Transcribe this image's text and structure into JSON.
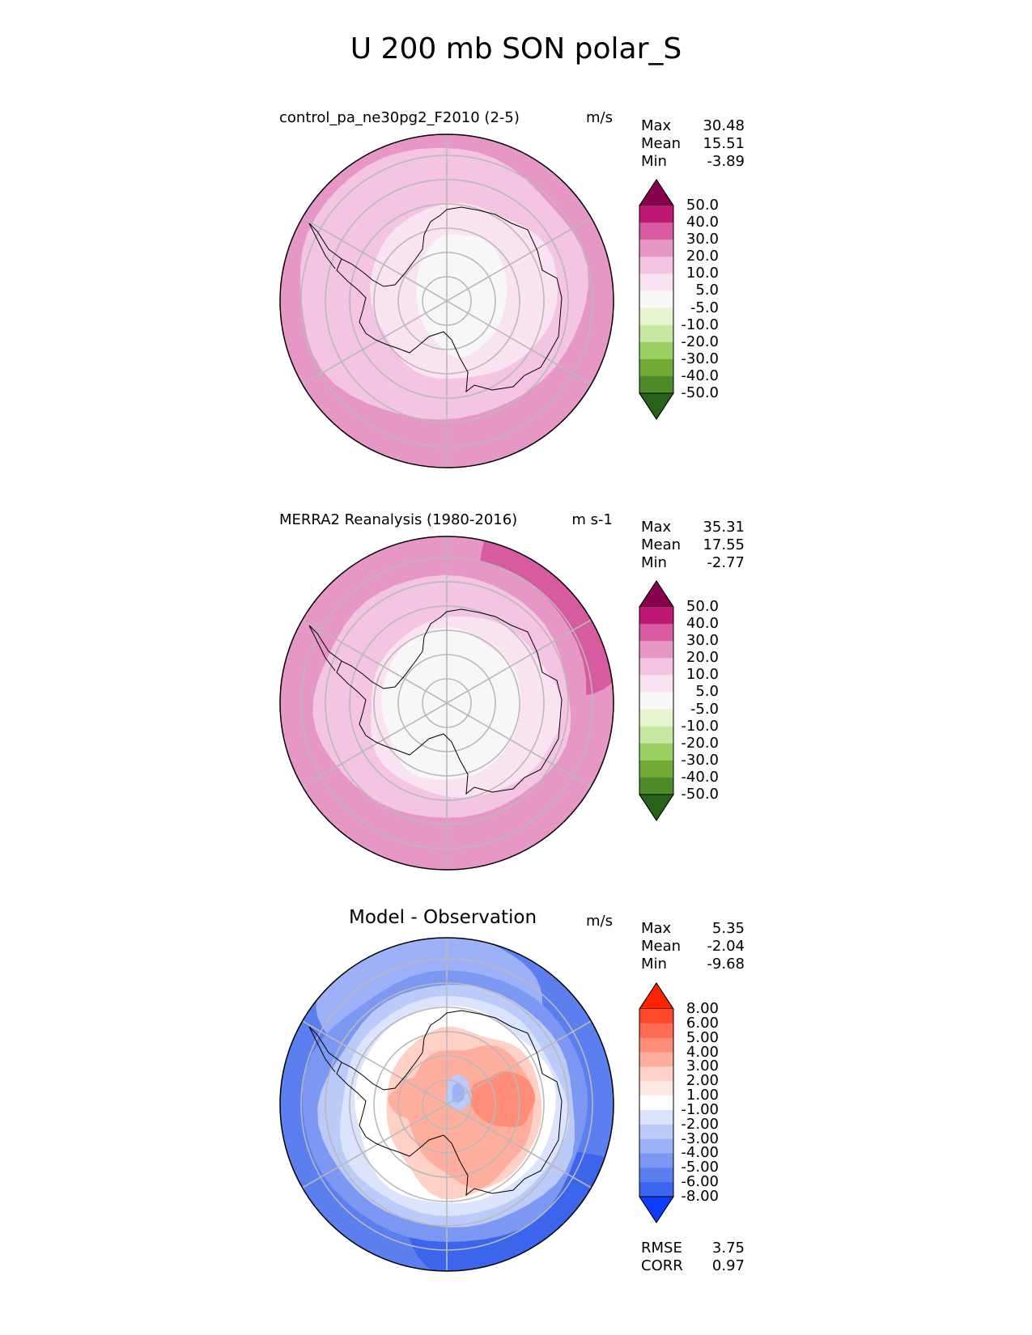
{
  "page_title": "U 200 mb SON polar_S",
  "colors": {
    "div_pos": [
      "#870050",
      "#c11774",
      "#d85aa1",
      "#e797c6",
      "#f3c5e0",
      "#fae3f0",
      "#f7f7f7"
    ],
    "div_neg": [
      "#f7f7f7",
      "#e6f5d0",
      "#c7e8a0",
      "#9ccf64",
      "#72ab36",
      "#4c8b27",
      "#276419"
    ],
    "diff_pos": [
      "#fe2400",
      "#ff4a2a",
      "#ff6b54",
      "#ff8d78",
      "#ffae9e",
      "#ffd0c5",
      "#ffe8e3",
      "#ffffff"
    ],
    "diff_neg": [
      "#ffffff",
      "#dce3fc",
      "#bccaf9",
      "#9cb1f7",
      "#7c98f3",
      "#5c7ff0",
      "#3b65ed",
      "#0d3bff"
    ],
    "continent_outline": "#000000",
    "grid": "#b9b9b9"
  },
  "panels": [
    {
      "title": "control_pa_ne30pg2_F2010 (2-5)",
      "units": "m/s",
      "stats": [
        {
          "label": "Max",
          "value": "30.48"
        },
        {
          "label": "Mean",
          "value": "15.51"
        },
        {
          "label": "Min",
          "value": "-3.89"
        }
      ],
      "colorbar_ticks": [
        "50.0",
        "40.0",
        "30.0",
        "20.0",
        "10.0",
        "5.0",
        "-5.0",
        "-10.0",
        "-20.0",
        "-30.0",
        "-40.0",
        "-50.0"
      ]
    },
    {
      "title": "MERRA2 Reanalysis (1980-2016)",
      "units": "m s-1",
      "stats": [
        {
          "label": "Max",
          "value": "35.31"
        },
        {
          "label": "Mean",
          "value": "17.55"
        },
        {
          "label": "Min",
          "value": "-2.77"
        }
      ],
      "colorbar_ticks": [
        "50.0",
        "40.0",
        "30.0",
        "20.0",
        "10.0",
        "5.0",
        "-5.0",
        "-10.0",
        "-20.0",
        "-30.0",
        "-40.0",
        "-50.0"
      ]
    },
    {
      "title": "Model - Observation",
      "units": "m/s",
      "stats": [
        {
          "label": "Max",
          "value": "5.35"
        },
        {
          "label": "Mean",
          "value": "-2.04"
        },
        {
          "label": "Min",
          "value": "-9.68"
        }
      ],
      "colorbar_ticks": [
        "8.00",
        "6.00",
        "5.00",
        "4.00",
        "3.00",
        "2.00",
        "1.00",
        "-1.00",
        "-2.00",
        "-3.00",
        "-4.00",
        "-5.00",
        "-6.00",
        "-8.00"
      ],
      "metrics": [
        {
          "label": "RMSE",
          "value": "3.75"
        },
        {
          "label": "CORR",
          "value": "0.97"
        }
      ]
    }
  ],
  "chart_data": [
    {
      "type": "heatmap",
      "title": "control_pa_ne30pg2_F2010 (2-5)",
      "projection": "south polar stereographic",
      "variable": "U 200 mb SON",
      "units": "m/s",
      "contour_levels": [
        -50,
        -40,
        -30,
        -20,
        -10,
        -5,
        5,
        10,
        20,
        30,
        40,
        50
      ],
      "max": 30.48,
      "mean": 15.51,
      "min": -3.89
    },
    {
      "type": "heatmap",
      "title": "MERRA2 Reanalysis (1980-2016)",
      "projection": "south polar stereographic",
      "variable": "U 200 mb SON",
      "units": "m s-1",
      "contour_levels": [
        -50,
        -40,
        -30,
        -20,
        -10,
        -5,
        5,
        10,
        20,
        30,
        40,
        50
      ],
      "max": 35.31,
      "mean": 17.55,
      "min": -2.77
    },
    {
      "type": "heatmap",
      "title": "Model - Observation",
      "projection": "south polar stereographic",
      "units": "m/s",
      "contour_levels": [
        -8,
        -6,
        -5,
        -4,
        -3,
        -2,
        -1,
        1,
        2,
        3,
        4,
        5,
        6,
        8
      ],
      "max": 5.35,
      "mean": -2.04,
      "min": -9.68,
      "rmse": 3.75,
      "corr": 0.97
    }
  ]
}
